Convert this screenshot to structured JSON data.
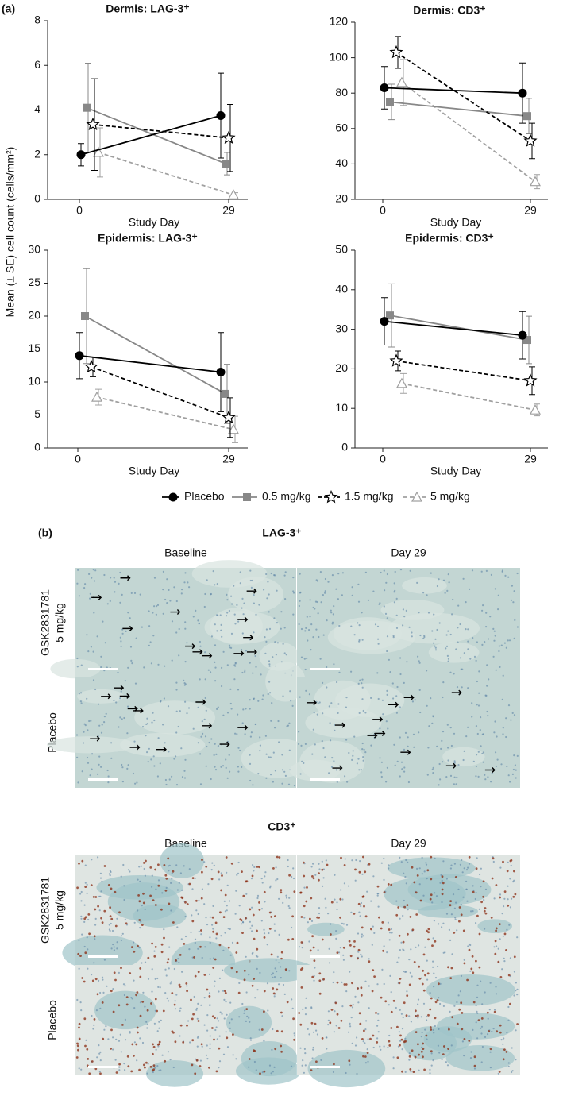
{
  "panel_a": {
    "label": "(a)",
    "y_label": "Mean (± SE) cell count (cells/mm²)"
  },
  "chart_data": [
    {
      "type": "line",
      "title": "Dermis: LAG-3⁺",
      "x_label": "Study Day",
      "categories": [
        "0",
        "29"
      ],
      "ylim": [
        0,
        8
      ],
      "yticks": [
        0,
        2,
        4,
        6,
        8
      ],
      "series": [
        {
          "name": "Placebo",
          "color": "#000000",
          "marker": "circle",
          "dashed": false,
          "values": [
            2.0,
            3.75
          ],
          "errors": [
            0.5,
            1.9
          ]
        },
        {
          "name": "0.5 mg/kg",
          "color": "#888888",
          "marker": "square",
          "dashed": false,
          "values": [
            4.1,
            1.6
          ],
          "errors": [
            2.0,
            0.5
          ]
        },
        {
          "name": "1.5 mg/kg",
          "color": "#000000",
          "marker": "star",
          "dashed": true,
          "values": [
            3.35,
            2.75
          ],
          "errors": [
            2.05,
            1.5
          ]
        },
        {
          "name": "5 mg/kg",
          "color": "#a0a0a0",
          "marker": "triangle",
          "dashed": true,
          "values": [
            2.1,
            0.2
          ],
          "errors": [
            1.1,
            0.1
          ]
        }
      ]
    },
    {
      "type": "line",
      "title": "Dermis: CD3⁺",
      "x_label": "Study Day",
      "categories": [
        "0",
        "29"
      ],
      "ylim": [
        20,
        120
      ],
      "yticks": [
        20,
        40,
        60,
        80,
        100,
        120
      ],
      "series": [
        {
          "name": "Placebo",
          "color": "#000000",
          "marker": "circle",
          "dashed": false,
          "values": [
            83,
            80
          ],
          "errors": [
            12,
            17
          ]
        },
        {
          "name": "0.5 mg/kg",
          "color": "#888888",
          "marker": "square",
          "dashed": false,
          "values": [
            75,
            67
          ],
          "errors": [
            10,
            10
          ]
        },
        {
          "name": "1.5 mg/kg",
          "color": "#000000",
          "marker": "star",
          "dashed": true,
          "values": [
            103,
            53
          ],
          "errors": [
            9,
            10
          ]
        },
        {
          "name": "5 mg/kg",
          "color": "#a0a0a0",
          "marker": "triangle",
          "dashed": true,
          "values": [
            86,
            30
          ],
          "errors": [
            13,
            4
          ]
        }
      ]
    },
    {
      "type": "line",
      "title": "Epidermis: LAG-3⁺",
      "x_label": "Study Day",
      "categories": [
        "0",
        "29"
      ],
      "ylim": [
        0,
        30
      ],
      "yticks": [
        0,
        5,
        10,
        15,
        20,
        25,
        30
      ],
      "series": [
        {
          "name": "Placebo",
          "color": "#000000",
          "marker": "circle",
          "dashed": false,
          "values": [
            14,
            11.5
          ],
          "errors": [
            3.5,
            6
          ]
        },
        {
          "name": "0.5 mg/kg",
          "color": "#888888",
          "marker": "square",
          "dashed": false,
          "values": [
            20,
            8.2
          ],
          "errors": [
            7.2,
            4.5
          ]
        },
        {
          "name": "1.5 mg/kg",
          "color": "#000000",
          "marker": "star",
          "dashed": true,
          "values": [
            12.3,
            4.6
          ],
          "errors": [
            1.5,
            3
          ]
        },
        {
          "name": "5 mg/kg",
          "color": "#a0a0a0",
          "marker": "triangle",
          "dashed": true,
          "values": [
            7.7,
            2.8
          ],
          "errors": [
            1.2,
            2
          ]
        }
      ]
    },
    {
      "type": "line",
      "title": "Epidermis: CD3⁺",
      "x_label": "Study Day",
      "categories": [
        "0",
        "29"
      ],
      "ylim": [
        0,
        50
      ],
      "yticks": [
        0,
        10,
        20,
        30,
        40,
        50
      ],
      "series": [
        {
          "name": "Placebo",
          "color": "#000000",
          "marker": "circle",
          "dashed": false,
          "values": [
            32,
            28.5
          ],
          "errors": [
            6,
            6
          ]
        },
        {
          "name": "0.5 mg/kg",
          "color": "#888888",
          "marker": "square",
          "dashed": false,
          "values": [
            33.5,
            27.3
          ],
          "errors": [
            8,
            6
          ]
        },
        {
          "name": "1.5 mg/kg",
          "color": "#000000",
          "marker": "star",
          "dashed": true,
          "values": [
            22,
            17
          ],
          "errors": [
            2.5,
            3.5
          ]
        },
        {
          "name": "5 mg/kg",
          "color": "#a0a0a0",
          "marker": "triangle",
          "dashed": true,
          "values": [
            16.3,
            9.6
          ],
          "errors": [
            2.5,
            1.5
          ]
        }
      ]
    }
  ],
  "panel_b": {
    "label": "(b)",
    "sections": [
      {
        "title": "LAG-3⁺",
        "columns": [
          "Baseline",
          "Day 29"
        ],
        "rows": [
          {
            "label_lines": [
              "GSK2831781",
              "5 mg/kg"
            ]
          },
          {
            "label_lines": [
              "Placebo"
            ]
          }
        ]
      },
      {
        "title": "CD3⁺",
        "columns": [
          "Baseline",
          "Day 29"
        ],
        "rows": [
          {
            "label_lines": [
              "GSK2831781",
              "5 mg/kg"
            ]
          },
          {
            "label_lines": [
              "Placebo"
            ]
          }
        ]
      }
    ]
  }
}
